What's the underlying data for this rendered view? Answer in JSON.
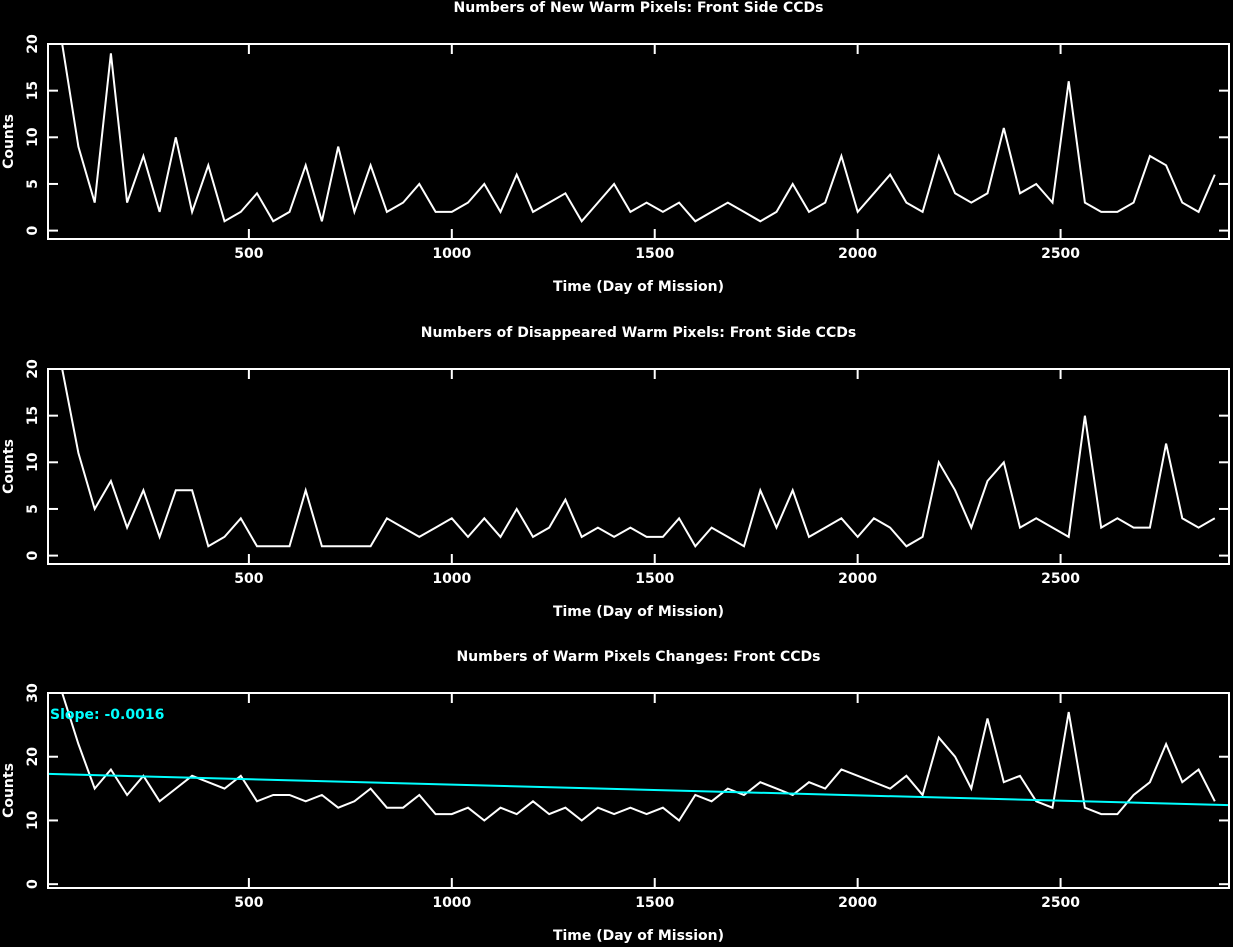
{
  "chart_data": [
    {
      "type": "line",
      "title": "Numbers of New Warm Pixels: Front Side CCDs",
      "xlabel": "Time (Day of Mission)",
      "ylabel": "Counts",
      "color": "#ffffff",
      "xlim": [
        5,
        2915
      ],
      "ylim": [
        -0.9,
        20
      ],
      "xticks": [
        500,
        1000,
        1500,
        2000,
        2500
      ],
      "yticks": [
        0,
        5,
        10,
        15,
        20
      ],
      "x": [
        40,
        80,
        120,
        160,
        200,
        240,
        280,
        320,
        360,
        400,
        440,
        480,
        520,
        560,
        600,
        640,
        680,
        720,
        760,
        800,
        840,
        880,
        920,
        960,
        1000,
        1040,
        1080,
        1120,
        1160,
        1200,
        1240,
        1280,
        1320,
        1360,
        1400,
        1440,
        1480,
        1520,
        1560,
        1600,
        1640,
        1680,
        1720,
        1760,
        1800,
        1840,
        1880,
        1920,
        1960,
        2000,
        2040,
        2080,
        2120,
        2160,
        2200,
        2240,
        2280,
        2320,
        2360,
        2400,
        2440,
        2480,
        2520,
        2560,
        2600,
        2640,
        2680,
        2720,
        2760,
        2800,
        2840,
        2880
      ],
      "values": [
        20,
        9,
        3,
        19,
        3,
        8,
        2,
        10,
        2,
        7,
        1,
        2,
        4,
        1,
        2,
        7,
        1,
        9,
        2,
        7,
        2,
        3,
        5,
        2,
        2,
        3,
        5,
        2,
        6,
        2,
        3,
        4,
        1,
        3,
        5,
        2,
        3,
        2,
        3,
        1,
        2,
        3,
        2,
        1,
        2,
        5,
        2,
        3,
        8,
        2,
        4,
        6,
        3,
        2,
        8,
        4,
        3,
        4,
        11,
        4,
        5,
        3,
        16,
        3,
        2,
        2,
        3,
        8,
        7,
        3,
        2,
        6
      ]
    },
    {
      "type": "line",
      "title": "Numbers of Disappeared Warm Pixels: Front Side CCDs",
      "xlabel": "Time (Day of Mission)",
      "ylabel": "Counts",
      "color": "#ffffff",
      "xlim": [
        5,
        2915
      ],
      "ylim": [
        -0.9,
        20
      ],
      "xticks": [
        500,
        1000,
        1500,
        2000,
        2500
      ],
      "yticks": [
        0,
        5,
        10,
        15,
        20
      ],
      "x": [
        40,
        80,
        120,
        160,
        200,
        240,
        280,
        320,
        360,
        400,
        440,
        480,
        520,
        560,
        600,
        640,
        680,
        720,
        760,
        800,
        840,
        880,
        920,
        960,
        1000,
        1040,
        1080,
        1120,
        1160,
        1200,
        1240,
        1280,
        1320,
        1360,
        1400,
        1440,
        1480,
        1520,
        1560,
        1600,
        1640,
        1680,
        1720,
        1760,
        1800,
        1840,
        1880,
        1920,
        1960,
        2000,
        2040,
        2080,
        2120,
        2160,
        2200,
        2240,
        2280,
        2320,
        2360,
        2400,
        2440,
        2480,
        2520,
        2560,
        2600,
        2640,
        2680,
        2720,
        2760,
        2800,
        2840,
        2880
      ],
      "values": [
        20,
        11,
        5,
        8,
        3,
        7,
        2,
        7,
        7,
        1,
        2,
        4,
        1,
        1,
        1,
        7,
        1,
        1,
        1,
        1,
        4,
        3,
        2,
        3,
        4,
        2,
        4,
        2,
        5,
        2,
        3,
        6,
        2,
        3,
        2,
        3,
        2,
        2,
        4,
        1,
        3,
        2,
        1,
        7,
        3,
        7,
        2,
        3,
        4,
        2,
        4,
        3,
        1,
        2,
        10,
        7,
        3,
        8,
        10,
        3,
        4,
        3,
        2,
        15,
        3,
        4,
        3,
        3,
        12,
        4,
        3,
        4
      ]
    },
    {
      "type": "line",
      "title": "Numbers of Warm Pixels Changes: Front CCDs",
      "xlabel": "Time (Day of Mission)",
      "ylabel": "Counts",
      "color": "#ffffff",
      "xlim": [
        5,
        2915
      ],
      "ylim": [
        -0.6,
        30
      ],
      "xticks": [
        500,
        1000,
        1500,
        2000,
        2500
      ],
      "yticks": [
        0,
        10,
        20,
        30
      ],
      "x": [
        40,
        80,
        120,
        160,
        200,
        240,
        280,
        320,
        360,
        400,
        440,
        480,
        520,
        560,
        600,
        640,
        680,
        720,
        760,
        800,
        840,
        880,
        920,
        960,
        1000,
        1040,
        1080,
        1120,
        1160,
        1200,
        1240,
        1280,
        1320,
        1360,
        1400,
        1440,
        1480,
        1520,
        1560,
        1600,
        1640,
        1680,
        1720,
        1760,
        1800,
        1840,
        1880,
        1920,
        1960,
        2000,
        2040,
        2080,
        2120,
        2160,
        2200,
        2240,
        2280,
        2320,
        2360,
        2400,
        2440,
        2480,
        2520,
        2560,
        2600,
        2640,
        2680,
        2720,
        2760,
        2800,
        2840,
        2880
      ],
      "values": [
        30,
        22,
        15,
        18,
        14,
        17,
        13,
        15,
        17,
        16,
        15,
        17,
        13,
        14,
        14,
        13,
        14,
        12,
        13,
        15,
        12,
        12,
        14,
        11,
        11,
        12,
        10,
        12,
        11,
        13,
        11,
        12,
        10,
        12,
        11,
        12,
        11,
        12,
        10,
        14,
        13,
        15,
        14,
        16,
        15,
        14,
        16,
        15,
        18,
        17,
        16,
        15,
        17,
        14,
        23,
        20,
        15,
        26,
        16,
        17,
        13,
        12,
        27,
        12,
        11,
        11,
        14,
        16,
        22,
        16,
        18,
        13
      ],
      "fit": {
        "x": [
          5,
          2915
        ],
        "values": [
          17.3,
          12.4
        ],
        "color": "#00ffff"
      },
      "annotation": "Slope: -0.0016"
    }
  ]
}
